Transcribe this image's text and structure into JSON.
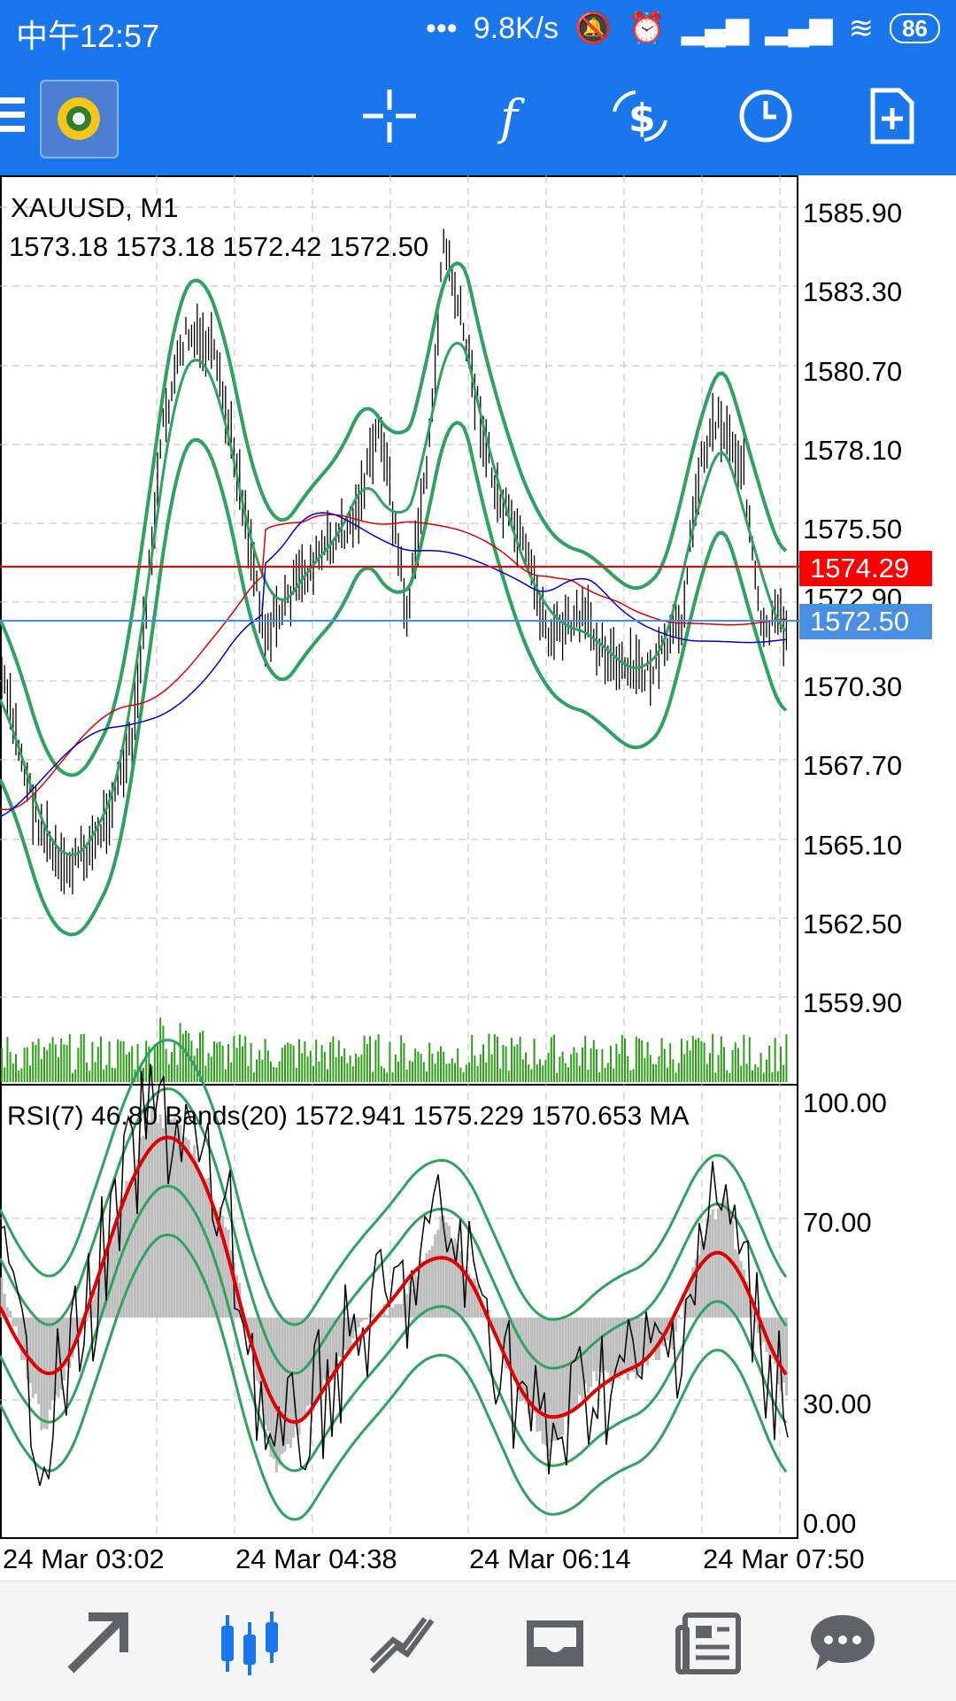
{
  "status_bar": {
    "time": "中午12:57",
    "dots": "•••",
    "speed": "9.8K/s",
    "battery": "86"
  },
  "chart": {
    "symbol_timeframe": "XAUUSD, M1",
    "ohlc": "1573.18 1573.18 1572.42 1572.50",
    "price_axis": [
      "1585.90",
      "1583.30",
      "1580.70",
      "1578.10",
      "1575.50",
      "1570.30",
      "1567.70",
      "1565.10",
      "1562.50",
      "1559.90"
    ],
    "price_axis_hidden": "1572.90",
    "ask_line_price": "1574.29",
    "bid_line_price": "1572.50",
    "indicator_header": "RSI(7) 46.80 Bands(20) 1572.941 1575.229 1570.653 MA",
    "rsi_axis": [
      "100.00",
      "70.00",
      "30.00",
      "0.00"
    ],
    "time_axis": [
      "24 Mar 03:02",
      "24 Mar 04:38",
      "24 Mar 06:14",
      "24 Mar 07:50"
    ]
  },
  "colors": {
    "accent": "#1976ec",
    "bull_bear_candle": "#000000",
    "bands": "#2ea35f",
    "ma_red": "#e00000",
    "ma_blue": "#0000d0",
    "volume": "#2e9e1a",
    "ask_line": "#ff0000",
    "bid_line": "#4a90e2"
  },
  "toolbar_icons": [
    "menu-icon",
    "mt4-logo",
    "crosshair-icon",
    "function-icon",
    "trade-dollar-icon",
    "clock-icon",
    "new-order-icon"
  ],
  "bottom_nav_icons": [
    "trade-icon",
    "chart-icon",
    "history-icon",
    "inbox-icon",
    "news-icon",
    "chat-icon"
  ]
}
